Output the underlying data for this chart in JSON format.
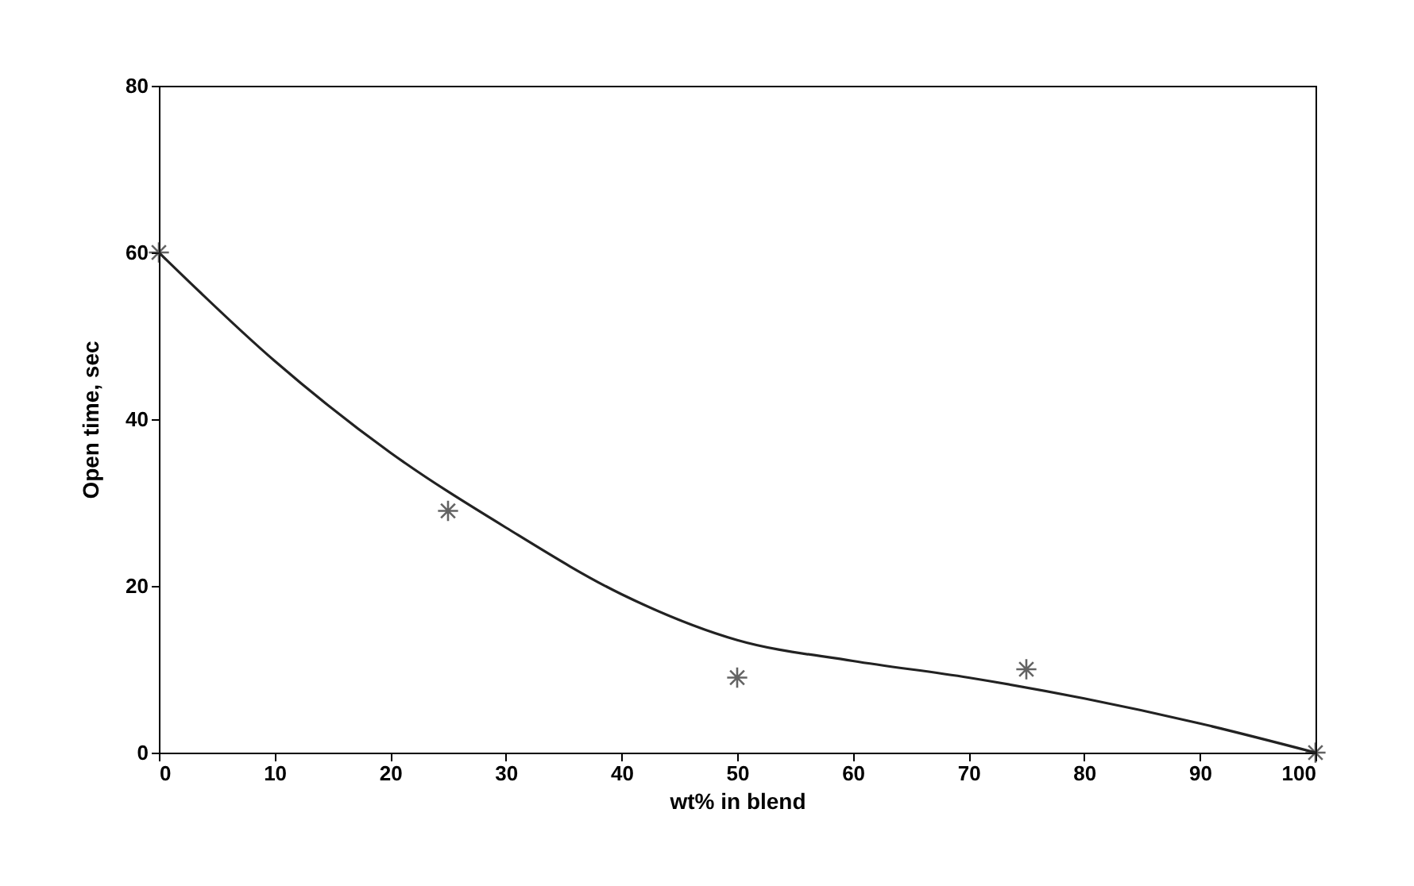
{
  "chart_data": {
    "type": "scatter",
    "xlabel": "wt% in blend",
    "ylabel": "Open time, sec",
    "xlim": [
      0,
      100
    ],
    "ylim": [
      0,
      80
    ],
    "xticks": [
      0,
      10,
      20,
      30,
      40,
      50,
      60,
      70,
      80,
      90,
      100
    ],
    "yticks": [
      0,
      20,
      40,
      60,
      80
    ],
    "grid": false,
    "marker": "cross",
    "series": [
      {
        "color": "#222222",
        "x": [
          0,
          25,
          50,
          75,
          100
        ],
        "values": [
          60,
          29,
          9,
          10,
          0
        ]
      },
      {
        "type": "line",
        "color": "#222222",
        "line_style": "solid",
        "marker": "none",
        "x": [
          0,
          10,
          20,
          30,
          40,
          50,
          60,
          70,
          80,
          90,
          100
        ],
        "values": [
          60,
          47,
          36,
          27,
          19,
          13.5,
          11,
          9,
          6.5,
          3.5,
          0
        ]
      }
    ]
  }
}
